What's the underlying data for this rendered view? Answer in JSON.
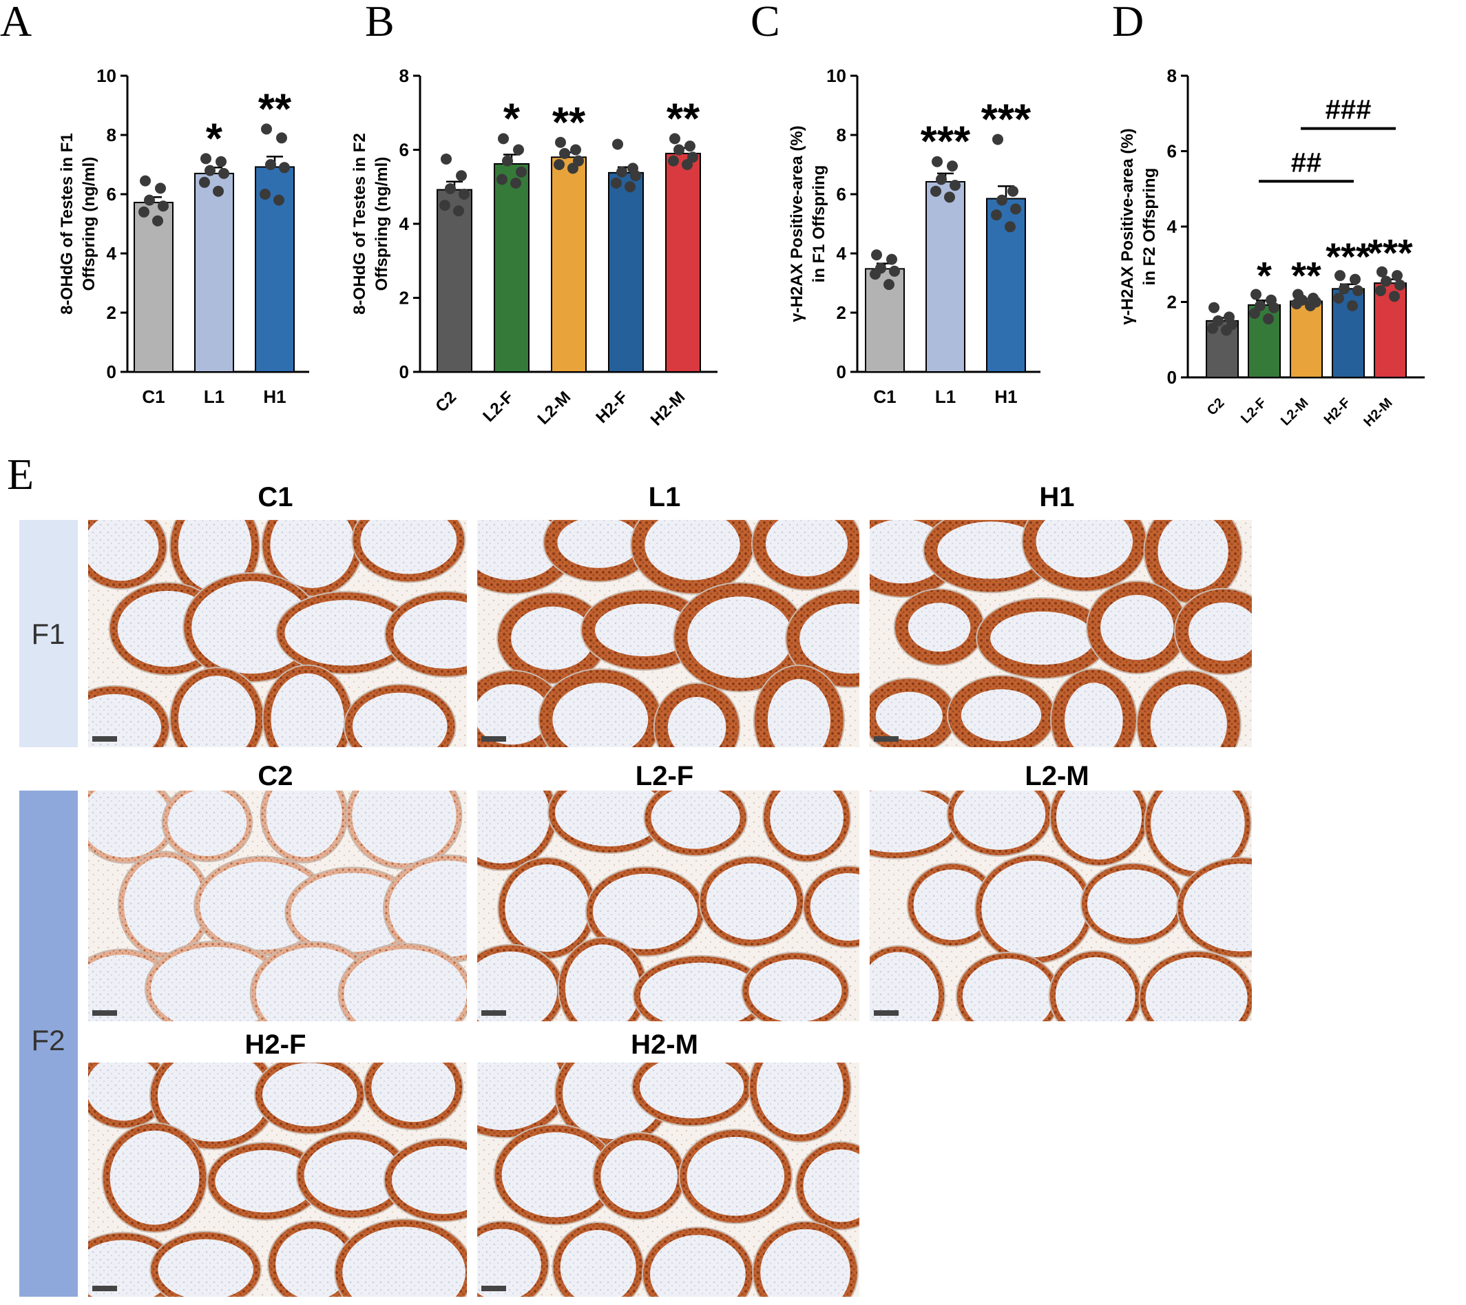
{
  "panels": {
    "A": "A",
    "B": "B",
    "C": "C",
    "D": "D",
    "E": "E"
  },
  "groups": {
    "F1": "F1",
    "F2": "F2"
  },
  "micrographs": [
    "C1",
    "L1",
    "H1",
    "C2",
    "L2-F",
    "L2-M",
    "H2-F",
    "H2-M"
  ],
  "colors": {
    "C": "#5a5a5a",
    "C1": "#b3b3b3",
    "L1": "#aebcdc",
    "H1": "#2f6fb0",
    "L2-F": "#367a3a",
    "L2-M": "#e8a33a",
    "H2-F": "#26609a",
    "H2-M": "#d83a40",
    "F1_band": "#dde6f5",
    "F2_band": "#8fa8db",
    "tubule_wall": "#b4502a",
    "tissue_bg": "#f4efea"
  },
  "chart_data": [
    {
      "panel": "A",
      "type": "bar",
      "ylabel": "8-OHdG of Testes in F1 Offspring (ng/ml)",
      "ylabel_lines": [
        "8-OHdG of Testes in F1",
        "Offspring (ng/ml)"
      ],
      "ylim": [
        0,
        10
      ],
      "yticks": [
        0,
        2,
        4,
        6,
        8,
        10
      ],
      "categories": [
        "C1",
        "L1",
        "H1"
      ],
      "values": [
        5.72,
        6.7,
        6.92
      ],
      "errors": [
        0.18,
        0.2,
        0.35
      ],
      "colors": [
        "#b3b3b3",
        "#aebcdc",
        "#2f6fb0"
      ],
      "significance": [
        "",
        "*",
        "**"
      ],
      "points": [
        [
          6.45,
          6.2,
          5.8,
          5.6,
          5.4,
          5.1
        ],
        [
          7.2,
          7.1,
          6.8,
          6.7,
          6.4,
          6.1
        ],
        [
          8.2,
          7.9,
          7.0,
          6.9,
          6.0,
          5.8
        ]
      ],
      "xtick_rotation": 0
    },
    {
      "panel": "B",
      "type": "bar",
      "ylabel": "8-OHdG of Testes in F2 Offspring (ng/ml)",
      "ylabel_lines": [
        "8-OHdG of Testes in F2",
        "Offspring (ng/ml)"
      ],
      "ylim": [
        0,
        8
      ],
      "yticks": [
        0,
        2,
        4,
        6,
        8
      ],
      "categories": [
        "C2",
        "L2-F",
        "L2-M",
        "H2-F",
        "H2-M"
      ],
      "values": [
        4.92,
        5.62,
        5.8,
        5.38,
        5.9
      ],
      "errors": [
        0.22,
        0.25,
        0.13,
        0.15,
        0.15
      ],
      "colors": [
        "#5a5a5a",
        "#367a3a",
        "#e8a33a",
        "#26609a",
        "#d83a40"
      ],
      "significance": [
        "",
        "*",
        "**",
        "",
        "**"
      ],
      "points": [
        [
          5.75,
          5.3,
          4.95,
          4.8,
          4.5,
          4.35
        ],
        [
          6.3,
          6.0,
          5.7,
          5.4,
          5.2,
          5.1
        ],
        [
          6.2,
          6.0,
          5.9,
          5.7,
          5.6,
          5.5
        ],
        [
          6.15,
          5.5,
          5.4,
          5.3,
          5.1,
          5.0
        ],
        [
          6.3,
          6.1,
          6.0,
          5.8,
          5.7,
          5.6
        ]
      ],
      "xtick_rotation": -45
    },
    {
      "panel": "C",
      "type": "bar",
      "ylabel": "γ-H2AX Positive-area (%) in F1 Offspring",
      "ylabel_lines": [
        "γ-H2AX Positive-area (%)",
        "in F1 Offspring"
      ],
      "ylim": [
        0,
        10
      ],
      "yticks": [
        0,
        2,
        4,
        6,
        8,
        10
      ],
      "categories": [
        "C1",
        "L1",
        "H1"
      ],
      "values": [
        3.48,
        6.42,
        5.85
      ],
      "errors": [
        0.18,
        0.28,
        0.42
      ],
      "colors": [
        "#b3b3b3",
        "#aebcdc",
        "#2f6fb0"
      ],
      "significance": [
        "",
        "***",
        "***"
      ],
      "points": [
        [
          3.95,
          3.8,
          3.5,
          3.4,
          3.3,
          2.95
        ],
        [
          7.1,
          6.95,
          6.5,
          6.3,
          6.1,
          5.9
        ],
        [
          7.85,
          6.1,
          5.8,
          5.5,
          5.3,
          4.9
        ]
      ],
      "xtick_rotation": 0
    },
    {
      "panel": "D",
      "type": "bar",
      "ylabel": "γ-H2AX Positive-area (%) in F2 Offspring",
      "ylabel_lines": [
        "γ-H2AX Positive-area (%)",
        "in F2 Offspring"
      ],
      "ylim": [
        0,
        8
      ],
      "yticks": [
        0,
        2,
        4,
        6,
        8
      ],
      "categories": [
        "C2",
        "L2-F",
        "L2-M",
        "H2-F",
        "H2-M"
      ],
      "values": [
        1.5,
        1.92,
        2.02,
        2.35,
        2.5
      ],
      "errors": [
        0.08,
        0.12,
        0.06,
        0.12,
        0.1
      ],
      "colors": [
        "#5a5a5a",
        "#367a3a",
        "#e8a33a",
        "#26609a",
        "#d83a40"
      ],
      "significance": [
        "",
        "*",
        "**",
        "***",
        "***"
      ],
      "points": [
        [
          1.85,
          1.6,
          1.5,
          1.4,
          1.3,
          1.25
        ],
        [
          2.2,
          2.05,
          1.9,
          1.85,
          1.7,
          1.55
        ],
        [
          2.2,
          2.1,
          2.05,
          2.0,
          1.95,
          1.9
        ],
        [
          2.7,
          2.6,
          2.35,
          2.3,
          2.1,
          1.9
        ],
        [
          2.8,
          2.7,
          2.55,
          2.45,
          2.3,
          2.15
        ]
      ],
      "brackets": [
        {
          "from": "L2-F",
          "to": "H2-F",
          "label": "##",
          "y": 5.2
        },
        {
          "from": "L2-M",
          "to": "H2-M",
          "label": "###",
          "y": 6.6
        }
      ],
      "xtick_rotation": -45
    }
  ]
}
